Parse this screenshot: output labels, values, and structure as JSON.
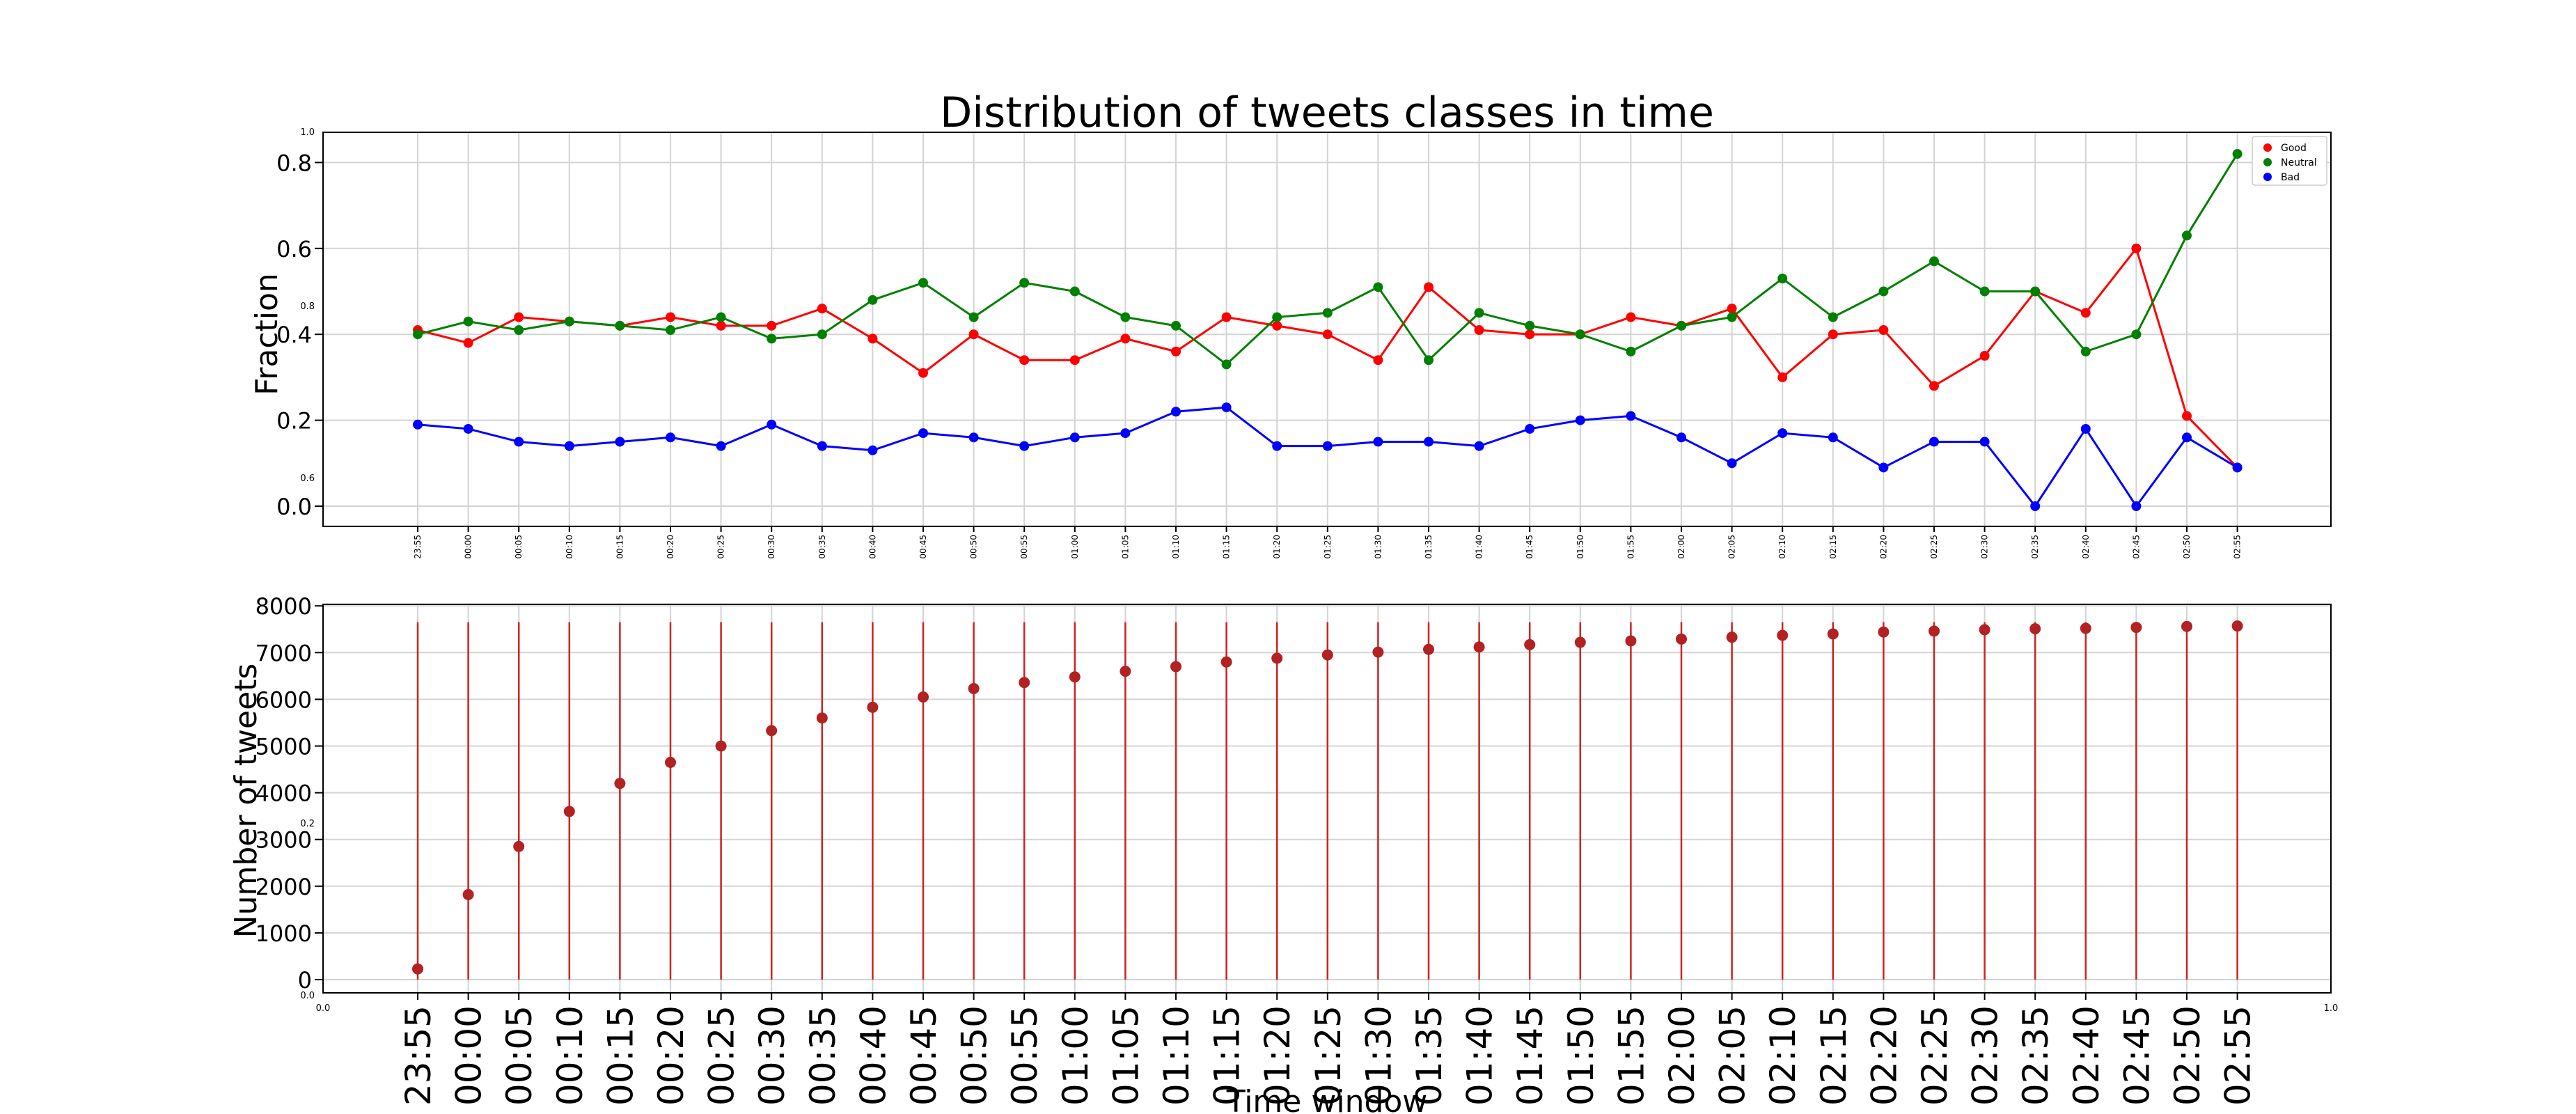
{
  "chart_data": [
    {
      "type": "line",
      "title": "Distribution of tweets classes in time",
      "ylabel": "Fraction",
      "ylim": [
        -0.05,
        0.87
      ],
      "yticks": [
        "0.0",
        "0.2",
        "0.4",
        "0.6",
        "0.8"
      ],
      "x": [
        "23:55",
        "00:00",
        "00:05",
        "00:10",
        "00:15",
        "00:20",
        "00:25",
        "00:30",
        "00:35",
        "00:40",
        "00:45",
        "00:50",
        "00:55",
        "01:00",
        "01:05",
        "01:10",
        "01:15",
        "01:20",
        "01:25",
        "01:30",
        "01:35",
        "01:40",
        "01:45",
        "01:50",
        "01:55",
        "02:00",
        "02:05",
        "02:10",
        "02:15",
        "02:20",
        "02:25",
        "02:30",
        "02:35",
        "02:40",
        "02:45",
        "02:50",
        "02:55"
      ],
      "grid": true,
      "legend_position": "top-right",
      "series": [
        {
          "name": "Good",
          "color": "#ff0000",
          "values": [
            0.41,
            0.38,
            0.44,
            0.43,
            0.42,
            0.44,
            0.42,
            0.42,
            0.46,
            0.39,
            0.31,
            0.4,
            0.34,
            0.34,
            0.39,
            0.36,
            0.44,
            0.42,
            0.4,
            0.34,
            0.51,
            0.41,
            0.4,
            0.4,
            0.44,
            0.42,
            0.46,
            0.3,
            0.4,
            0.41,
            0.28,
            0.35,
            0.5,
            0.45,
            0.6,
            0.21,
            0.09
          ]
        },
        {
          "name": "Neutral",
          "color": "#008000",
          "values": [
            0.4,
            0.43,
            0.41,
            0.43,
            0.42,
            0.41,
            0.44,
            0.39,
            0.4,
            0.48,
            0.52,
            0.44,
            0.52,
            0.5,
            0.44,
            0.42,
            0.33,
            0.44,
            0.45,
            0.51,
            0.34,
            0.45,
            0.42,
            0.4,
            0.36,
            0.42,
            0.44,
            0.53,
            0.44,
            0.5,
            0.57,
            0.5,
            0.5,
            0.36,
            0.4,
            0.63,
            0.82
          ]
        },
        {
          "name": "Bad",
          "color": "#0000ff",
          "values": [
            0.19,
            0.18,
            0.15,
            0.14,
            0.15,
            0.16,
            0.14,
            0.19,
            0.14,
            0.13,
            0.17,
            0.16,
            0.14,
            0.16,
            0.17,
            0.22,
            0.23,
            0.14,
            0.14,
            0.15,
            0.15,
            0.14,
            0.18,
            0.2,
            0.21,
            0.16,
            0.1,
            0.17,
            0.16,
            0.09,
            0.15,
            0.15,
            0.0,
            0.18,
            0.0,
            0.16,
            0.09
          ]
        }
      ]
    },
    {
      "type": "scatter",
      "xlabel": "Time window",
      "ylabel": "Number of tweets",
      "ylim": [
        -400,
        8000
      ],
      "yticks": [
        "0",
        "1000",
        "2000",
        "3000",
        "4000",
        "5000",
        "6000",
        "7000",
        "8000"
      ],
      "x": [
        "23:55",
        "00:00",
        "00:05",
        "00:10",
        "00:15",
        "00:20",
        "00:25",
        "00:30",
        "00:35",
        "00:40",
        "00:45",
        "00:50",
        "00:55",
        "01:00",
        "01:05",
        "01:10",
        "01:15",
        "01:20",
        "01:25",
        "01:30",
        "01:35",
        "01:40",
        "01:45",
        "01:50",
        "01:55",
        "02:00",
        "02:05",
        "02:10",
        "02:15",
        "02:20",
        "02:25",
        "02:30",
        "02:35",
        "02:40",
        "02:45",
        "02:50",
        "02:55"
      ],
      "values": [
        230,
        1820,
        2850,
        3600,
        4200,
        4650,
        5000,
        5330,
        5600,
        5830,
        6050,
        6230,
        6360,
        6480,
        6600,
        6700,
        6800,
        6880,
        6950,
        7010,
        7070,
        7120,
        7170,
        7220,
        7250,
        7290,
        7330,
        7370,
        7400,
        7440,
        7460,
        7490,
        7510,
        7520,
        7540,
        7560,
        7570
      ],
      "stem_top": 7650,
      "color": "#b22222",
      "grid": true
    }
  ],
  "overlay_ticks": {
    "left_y": [
      "1.0",
      "0.8",
      "0.6",
      "0.2",
      "0.0"
    ],
    "bottom_x": [
      "0.0",
      "1.0"
    ]
  },
  "legend_title": ""
}
